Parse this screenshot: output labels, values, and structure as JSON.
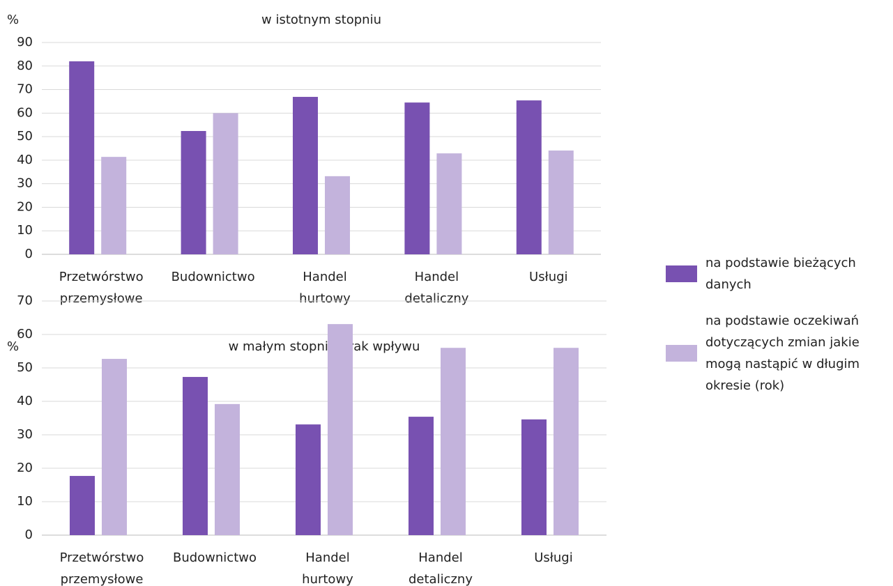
{
  "chart_data": [
    {
      "type": "bar",
      "title": "w istotnym stopniu",
      "y_label": "%",
      "categories": [
        "Przetwórstwo przemysłowe",
        "Budownictwo",
        "Handel hurtowy",
        "Handel detaliczny",
        "Usługi"
      ],
      "series": [
        {
          "name": "na podstawie bieżących danych",
          "color": "#7851b1",
          "values": [
            82,
            52.4,
            66.9,
            64.5,
            65.4
          ]
        },
        {
          "name": "na podstawie oczekiwań dotyczących zmian jakie mogą nastąpić w długim okresie (rok)",
          "color": "#c3b3dc",
          "values": [
            41.4,
            60,
            33.2,
            42.9,
            44.1
          ]
        }
      ],
      "ylim": [
        0,
        90
      ],
      "yticks": [
        0,
        10,
        20,
        30,
        40,
        50,
        60,
        70,
        80,
        90
      ],
      "grid": true
    },
    {
      "type": "bar",
      "title": "w małym stopniu/brak wpływu",
      "y_label": "%",
      "categories": [
        "Przetwórstwo przemysłowe",
        "Budownictwo",
        "Handel hurtowy",
        "Handel detaliczny",
        "Usługi"
      ],
      "series": [
        {
          "color": "#7851b1",
          "values": [
            17.7,
            47.3,
            33.1,
            35.4,
            34.6
          ]
        },
        {
          "color": "#c3b3dc",
          "values": [
            52.7,
            39.2,
            63.1,
            56,
            56
          ]
        }
      ],
      "ylim": [
        0,
        70
      ],
      "yticks": [
        0,
        10,
        20,
        30,
        40,
        50,
        60,
        70
      ],
      "grid": true
    }
  ]
}
